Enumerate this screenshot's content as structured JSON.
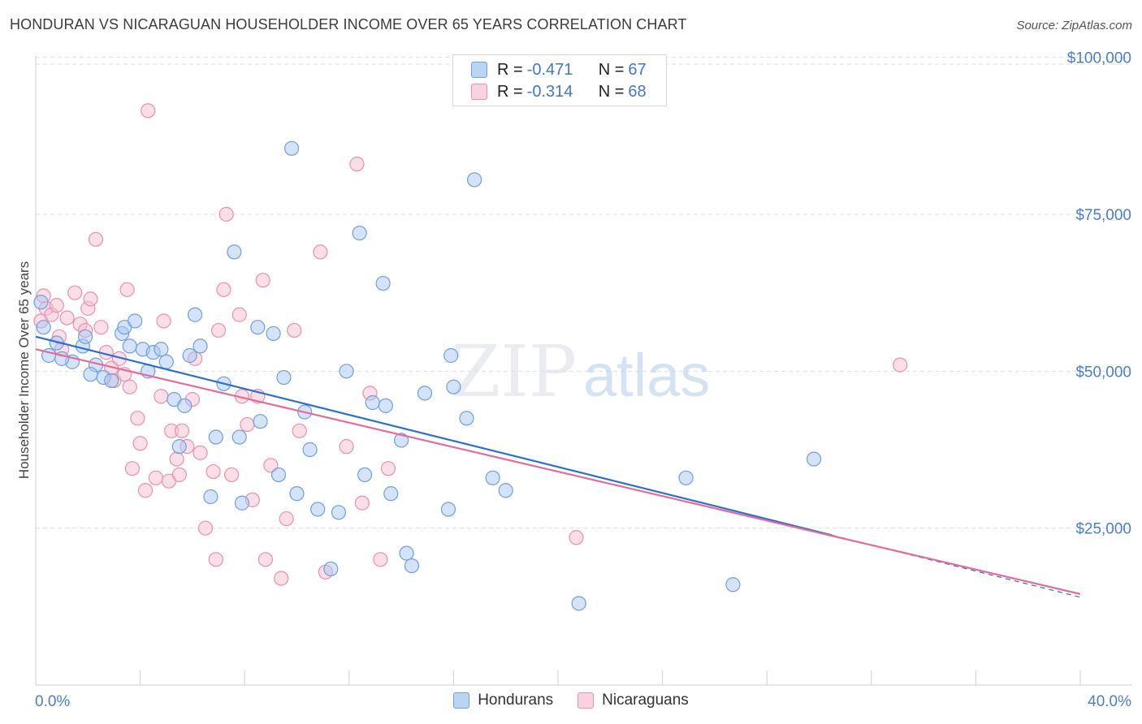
{
  "title": "HONDURAN VS NICARAGUAN HOUSEHOLDER INCOME OVER 65 YEARS CORRELATION CHART",
  "source": "Source: ZipAtlas.com",
  "watermark": {
    "zip": "ZIP",
    "atlas": "atlas"
  },
  "legend": {
    "row1": {
      "r_label": "R = ",
      "r_value": "-0.471",
      "n_label": "N = ",
      "n_value": "67"
    },
    "row2": {
      "r_label": "R = ",
      "r_value": "-0.314",
      "n_label": "N = ",
      "n_value": "68"
    }
  },
  "colors": {
    "hondurans_fill": "#a9c7ef",
    "hondurans_stroke": "#6f9fe0",
    "hondurans_line": "#2a6fd1",
    "nicaraguans_fill": "#f6bfd0",
    "nicaraguans_stroke": "#eb8fae",
    "nicaraguans_line": "#e56b98",
    "tick_text": "#4a7fcf",
    "grid": "#dedede"
  },
  "chart_data": {
    "type": "scatter",
    "title": "HONDURAN VS NICARAGUAN HOUSEHOLDER INCOME OVER 65 YEARS CORRELATION CHART",
    "xlabel": "",
    "ylabel": "Householder Income Over 65 years",
    "xlim": [
      0,
      40
    ],
    "ylim": [
      0,
      105000
    ],
    "x_tick_labels": [
      "0.0%",
      "40.0%"
    ],
    "y_ticks": [
      25000,
      50000,
      75000,
      100000
    ],
    "y_tick_labels": [
      "$25,000",
      "$50,000",
      "$75,000",
      "$100,000"
    ],
    "grid": true,
    "legend_position": "bottom",
    "series": [
      {
        "name": "Hondurans",
        "r": -0.471,
        "n": 67,
        "trend": {
          "x0": 0,
          "y0": 55500,
          "x1": 40,
          "y1": 14000,
          "solid_until_x": 30.5
        },
        "points": [
          [
            0.2,
            61000
          ],
          [
            0.3,
            57000
          ],
          [
            0.5,
            52500
          ],
          [
            0.8,
            54500
          ],
          [
            1.4,
            51500
          ],
          [
            1.8,
            54000
          ],
          [
            1.9,
            55500
          ],
          [
            2.3,
            51000
          ],
          [
            2.6,
            49000
          ],
          [
            2.9,
            48500
          ],
          [
            3.3,
            56000
          ],
          [
            3.4,
            57000
          ],
          [
            3.6,
            54000
          ],
          [
            3.8,
            58000
          ],
          [
            4.1,
            53500
          ],
          [
            4.3,
            50000
          ],
          [
            4.5,
            53000
          ],
          [
            4.8,
            53500
          ],
          [
            5.0,
            51500
          ],
          [
            5.3,
            45500
          ],
          [
            5.5,
            38000
          ],
          [
            5.7,
            44500
          ],
          [
            5.9,
            52500
          ],
          [
            6.1,
            59000
          ],
          [
            6.3,
            54000
          ],
          [
            6.7,
            30000
          ],
          [
            6.9,
            39500
          ],
          [
            7.2,
            48000
          ],
          [
            7.6,
            69000
          ],
          [
            7.8,
            39500
          ],
          [
            7.9,
            29000
          ],
          [
            8.5,
            57000
          ],
          [
            8.6,
            42000
          ],
          [
            9.1,
            56000
          ],
          [
            9.3,
            33500
          ],
          [
            9.5,
            49000
          ],
          [
            9.8,
            85500
          ],
          [
            10.0,
            30500
          ],
          [
            10.3,
            43500
          ],
          [
            10.5,
            37500
          ],
          [
            10.8,
            28000
          ],
          [
            11.3,
            18500
          ],
          [
            11.6,
            27500
          ],
          [
            11.9,
            50000
          ],
          [
            12.4,
            72000
          ],
          [
            12.6,
            33500
          ],
          [
            12.9,
            45000
          ],
          [
            13.3,
            64000
          ],
          [
            13.4,
            44500
          ],
          [
            13.6,
            30500
          ],
          [
            14.0,
            39000
          ],
          [
            14.2,
            21000
          ],
          [
            14.4,
            19000
          ],
          [
            14.9,
            46500
          ],
          [
            15.8,
            28000
          ],
          [
            15.9,
            52500
          ],
          [
            16.0,
            47500
          ],
          [
            16.5,
            42500
          ],
          [
            16.8,
            80500
          ],
          [
            17.5,
            33000
          ],
          [
            18.0,
            31000
          ],
          [
            20.8,
            13000
          ],
          [
            24.9,
            33000
          ],
          [
            26.7,
            16000
          ],
          [
            29.8,
            36000
          ],
          [
            1.0,
            52000
          ],
          [
            2.1,
            49500
          ]
        ]
      },
      {
        "name": "Nicaraguans",
        "r": -0.314,
        "n": 68,
        "trend": {
          "x0": 0,
          "y0": 53500,
          "x1": 40,
          "y1": 14500
        },
        "points": [
          [
            0.2,
            58000
          ],
          [
            0.3,
            62000
          ],
          [
            0.4,
            60000
          ],
          [
            0.6,
            59000
          ],
          [
            0.8,
            60500
          ],
          [
            0.9,
            55500
          ],
          [
            1.0,
            53500
          ],
          [
            1.2,
            58500
          ],
          [
            1.5,
            62500
          ],
          [
            1.7,
            57500
          ],
          [
            1.9,
            56500
          ],
          [
            2.0,
            60000
          ],
          [
            2.1,
            61500
          ],
          [
            2.3,
            71000
          ],
          [
            2.5,
            57000
          ],
          [
            2.7,
            53000
          ],
          [
            2.9,
            50500
          ],
          [
            3.0,
            48500
          ],
          [
            3.2,
            52000
          ],
          [
            3.4,
            49500
          ],
          [
            3.5,
            63000
          ],
          [
            3.6,
            47500
          ],
          [
            3.7,
            34500
          ],
          [
            3.9,
            42500
          ],
          [
            4.0,
            38500
          ],
          [
            4.2,
            31000
          ],
          [
            4.3,
            91500
          ],
          [
            4.6,
            33000
          ],
          [
            4.8,
            46000
          ],
          [
            4.9,
            58000
          ],
          [
            5.1,
            32500
          ],
          [
            5.2,
            40500
          ],
          [
            5.4,
            36000
          ],
          [
            5.5,
            33500
          ],
          [
            5.6,
            40500
          ],
          [
            5.8,
            38000
          ],
          [
            6.0,
            45500
          ],
          [
            6.1,
            52000
          ],
          [
            6.3,
            37000
          ],
          [
            6.5,
            25000
          ],
          [
            6.8,
            34000
          ],
          [
            6.9,
            20000
          ],
          [
            7.0,
            56500
          ],
          [
            7.2,
            63000
          ],
          [
            7.3,
            75000
          ],
          [
            7.5,
            33500
          ],
          [
            7.8,
            59000
          ],
          [
            7.9,
            46000
          ],
          [
            8.1,
            41500
          ],
          [
            8.3,
            29500
          ],
          [
            8.5,
            46000
          ],
          [
            8.7,
            64500
          ],
          [
            8.8,
            20000
          ],
          [
            9.0,
            35000
          ],
          [
            9.4,
            17000
          ],
          [
            9.6,
            26500
          ],
          [
            9.9,
            56500
          ],
          [
            10.1,
            40500
          ],
          [
            10.9,
            69000
          ],
          [
            11.1,
            18000
          ],
          [
            11.9,
            38000
          ],
          [
            12.3,
            83000
          ],
          [
            12.5,
            29000
          ],
          [
            12.8,
            46500
          ],
          [
            13.2,
            20000
          ],
          [
            13.5,
            34500
          ],
          [
            20.7,
            23500
          ],
          [
            33.1,
            51000
          ]
        ]
      }
    ]
  }
}
